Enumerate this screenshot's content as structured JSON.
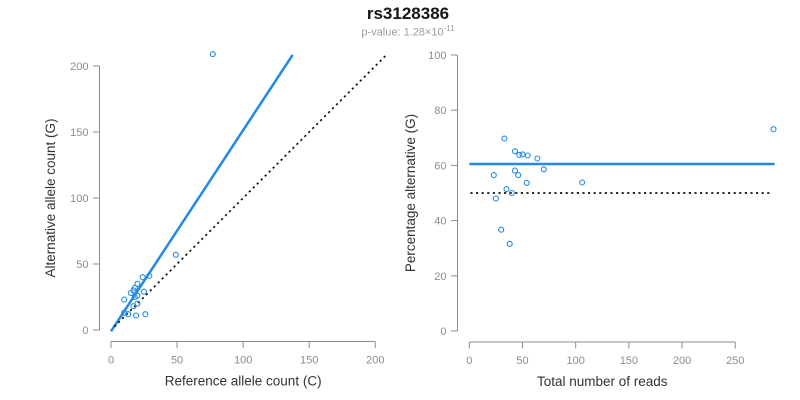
{
  "header": {
    "title": "rs3128386",
    "subtitle": {
      "text": "p-value: 1.28×10",
      "exponent": "-11"
    }
  },
  "theme": {
    "accent_blue": "#2389e5",
    "axis_color": "#8c8c8c",
    "tick_label_color": "#8c8c8c",
    "axis_title_color": "#333333",
    "dotted_line_color": "#111111",
    "point_color": "#2389e5"
  },
  "chart_data": [
    {
      "type": "scatter",
      "name": "allele-count-scatter",
      "xlabel": "Reference allele count (C)",
      "ylabel": "Alternative allele count (G)",
      "xticks": [
        0,
        50,
        100,
        150,
        200
      ],
      "yticks": [
        0,
        50,
        100,
        150,
        200
      ],
      "xlim": [
        0,
        208
      ],
      "ylim": [
        0,
        208
      ],
      "grid": false,
      "legend": "none",
      "points": [
        [
          10,
          13
        ],
        [
          10,
          23
        ],
        [
          15,
          28
        ],
        [
          17,
          30
        ],
        [
          18,
          32
        ],
        [
          20,
          35
        ],
        [
          24,
          40
        ],
        [
          29,
          41
        ],
        [
          18,
          25
        ],
        [
          20,
          26
        ],
        [
          25,
          29
        ],
        [
          17,
          18
        ],
        [
          20,
          20
        ],
        [
          13,
          12
        ],
        [
          19,
          11
        ],
        [
          26,
          12
        ],
        [
          49,
          57
        ],
        [
          77,
          209
        ]
      ],
      "lines": [
        {
          "name": "regression-line",
          "style": "solid",
          "color": "#2389e5",
          "from": [
            0,
            -1
          ],
          "to": [
            137.5,
            208.5
          ]
        },
        {
          "name": "identity-line",
          "style": "dotted",
          "color": "#111111",
          "from": [
            2.5,
            2.5
          ],
          "to": [
            208.5,
            208.5
          ]
        }
      ]
    },
    {
      "type": "scatter",
      "name": "percentage-scatter",
      "xlabel": "Total number of reads",
      "ylabel": "Percentage alternative (G)",
      "xticks": [
        0,
        50,
        100,
        150,
        200,
        250
      ],
      "yticks": [
        0,
        20,
        40,
        60,
        80,
        100
      ],
      "xlim": [
        0,
        287
      ],
      "ylim": [
        0,
        100
      ],
      "grid": false,
      "legend": "none",
      "points": [
        [
          23,
          56.5
        ],
        [
          33,
          69.7
        ],
        [
          43,
          65.1
        ],
        [
          47,
          63.8
        ],
        [
          50,
          64.0
        ],
        [
          55,
          63.6
        ],
        [
          64,
          62.5
        ],
        [
          70,
          58.6
        ],
        [
          43,
          58.1
        ],
        [
          46,
          56.5
        ],
        [
          54,
          53.7
        ],
        [
          35,
          51.4
        ],
        [
          40,
          50.0
        ],
        [
          25,
          48.0
        ],
        [
          30,
          36.7
        ],
        [
          38,
          31.6
        ],
        [
          106,
          53.8
        ],
        [
          286,
          73.1
        ]
      ],
      "lines": [
        {
          "name": "mean-percentage-line",
          "style": "solid",
          "color": "#2389e5",
          "from": [
            0,
            60.5
          ],
          "to": [
            287,
            60.5
          ]
        },
        {
          "name": "expected-50pct-line",
          "style": "dotted",
          "color": "#111111",
          "from": [
            1,
            50
          ],
          "to": [
            284,
            50
          ]
        }
      ]
    }
  ]
}
